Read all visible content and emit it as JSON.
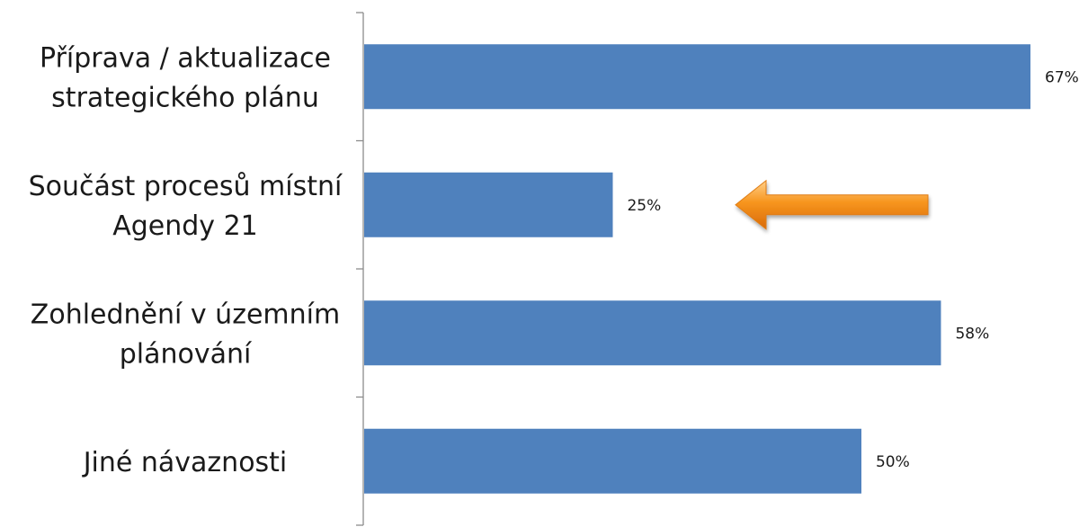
{
  "chart_data": {
    "type": "bar",
    "orientation": "horizontal",
    "categories": [
      [
        "Příprava / aktualizace",
        "strategického plánu"
      ],
      [
        "Součást procesů místní",
        "Agendy 21"
      ],
      [
        "Zohlednění v územním",
        "plánování"
      ],
      [
        "Jiné návaznosti"
      ]
    ],
    "values": [
      67,
      25,
      58,
      50
    ],
    "value_labels": [
      "67%",
      "25%",
      "58%",
      "50%"
    ],
    "xlim": [
      0,
      70
    ],
    "bar_color": "#4f81bd",
    "grid": false,
    "legend": "none",
    "annotation": {
      "shape": "arrow",
      "direction": "left",
      "points_to_index": 1,
      "color": "#f28a1a"
    }
  }
}
